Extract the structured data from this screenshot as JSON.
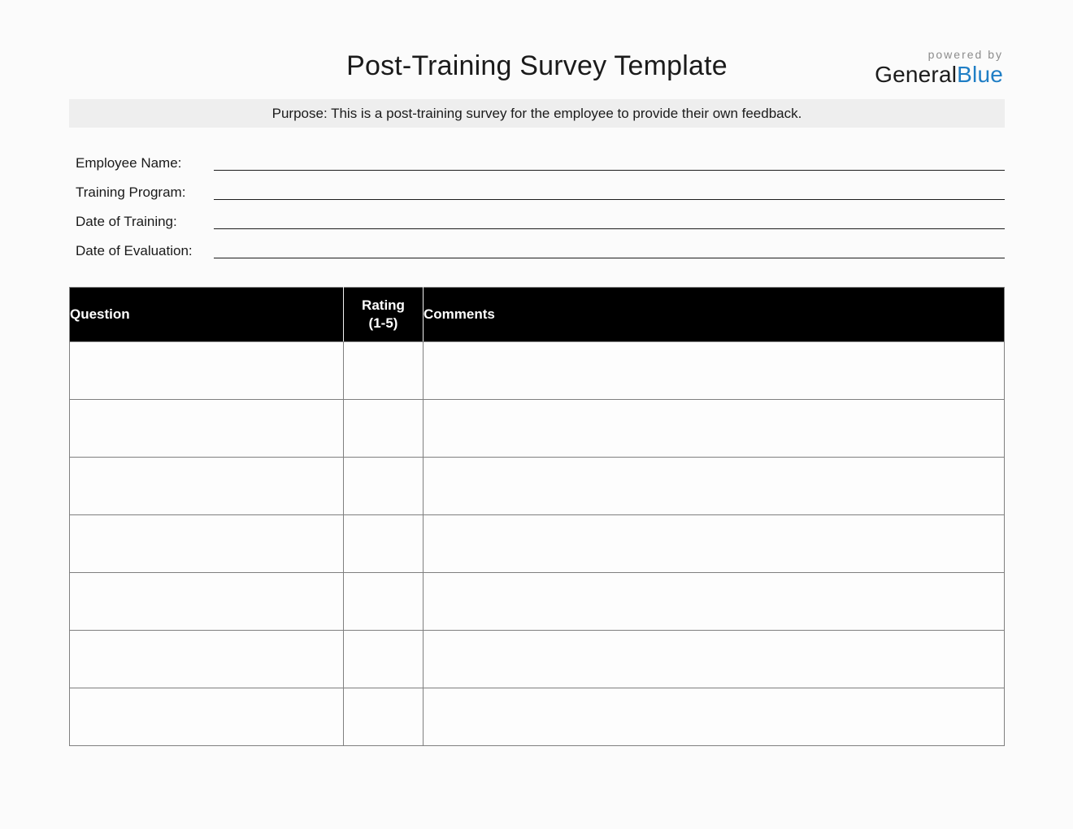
{
  "title": "Post-Training Survey Template",
  "logo": {
    "powered_by": "powered by",
    "brand_black": "General",
    "brand_blue": "Blue"
  },
  "purpose": "Purpose: This is a post-training survey for the employee to provide their own feedback.",
  "fields": [
    {
      "label": "Employee Name:",
      "value": ""
    },
    {
      "label": "Training Program:",
      "value": ""
    },
    {
      "label": "Date of Training:",
      "value": ""
    },
    {
      "label": "Date of Evaluation:",
      "value": ""
    }
  ],
  "table": {
    "headers": {
      "question": "Question",
      "rating": "Rating",
      "rating_scale": "(1-5)",
      "comments": "Comments"
    },
    "rows": [
      {
        "question": "",
        "rating": "",
        "comments": ""
      },
      {
        "question": "",
        "rating": "",
        "comments": ""
      },
      {
        "question": "",
        "rating": "",
        "comments": ""
      },
      {
        "question": "",
        "rating": "",
        "comments": ""
      },
      {
        "question": "",
        "rating": "",
        "comments": ""
      },
      {
        "question": "",
        "rating": "",
        "comments": ""
      },
      {
        "question": "",
        "rating": "",
        "comments": ""
      }
    ]
  },
  "colors": {
    "brand_blue": "#1f7ec5",
    "table_header_bg": "#000000",
    "purpose_bar_bg": "#eeeeee",
    "table_border": "#7f7f7f",
    "page_bg": "#fbfbfb"
  }
}
